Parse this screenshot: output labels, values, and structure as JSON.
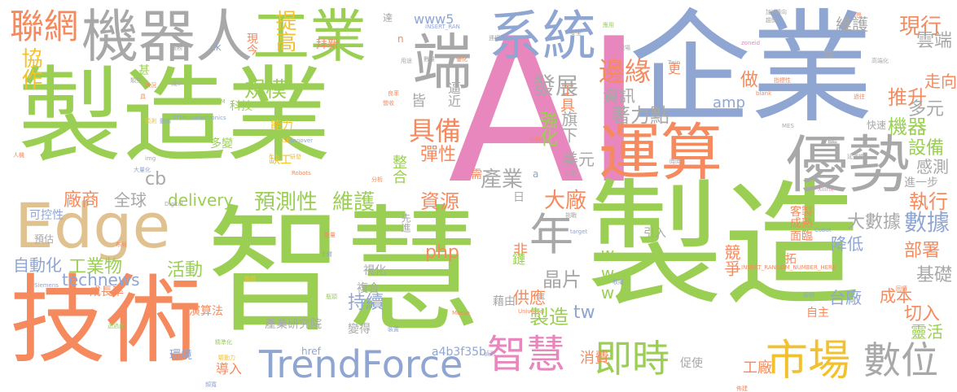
{
  "palette": {
    "green": "#9BCF53",
    "blue": "#8FA5D2",
    "orange": "#F58A5E",
    "pink": "#E886BE",
    "gray": "#A8A8A8",
    "yellow": "#F2C22E",
    "tan": "#E0C190",
    "background": "#FFFFFF"
  },
  "words": [
    {
      "text": "AI",
      "color": "pink"
    },
    {
      "text": "企業",
      "color": "blue"
    },
    {
      "text": "製造業",
      "color": "green"
    },
    {
      "text": "智慧",
      "color": "green"
    },
    {
      "text": "製造",
      "color": "green"
    },
    {
      "text": "技術",
      "color": "orange"
    },
    {
      "text": "機器人",
      "color": "gray"
    },
    {
      "text": "工業",
      "color": "green"
    },
    {
      "text": "系統",
      "color": "blue"
    },
    {
      "text": "端",
      "color": "gray"
    },
    {
      "text": "Edge",
      "color": "tan"
    },
    {
      "text": "運算",
      "color": "orange"
    },
    {
      "text": "優勢",
      "color": "gray"
    },
    {
      "text": "TrendForce",
      "color": "blue"
    },
    {
      "text": "智慧",
      "color": "pink"
    },
    {
      "text": "市場",
      "color": "yellow"
    },
    {
      "text": "即時",
      "color": "green"
    },
    {
      "text": "數位",
      "color": "gray"
    },
    {
      "text": "聯網",
      "color": "orange"
    },
    {
      "text": "年",
      "color": "gray"
    },
    {
      "text": "協作",
      "color": "yellow"
    },
    {
      "text": "提高",
      "color": "yellow"
    },
    {
      "text": "規模",
      "color": "green"
    },
    {
      "text": "邊緣",
      "color": "orange"
    },
    {
      "text": "現行",
      "color": "orange"
    },
    {
      "text": "雲端",
      "color": "gray"
    },
    {
      "text": "走向",
      "color": "orange"
    },
    {
      "text": "推升",
      "color": "orange"
    },
    {
      "text": "多元",
      "color": "gray"
    },
    {
      "text": "機器",
      "color": "green"
    },
    {
      "text": "設備",
      "color": "green"
    },
    {
      "text": "感測",
      "color": "gray"
    },
    {
      "text": "執行",
      "color": "orange"
    },
    {
      "text": "數據",
      "color": "blue"
    },
    {
      "text": "大數據",
      "color": "gray"
    },
    {
      "text": "發展",
      "color": "gray"
    },
    {
      "text": "資訊",
      "color": "gray"
    },
    {
      "text": "著力點",
      "color": "gray"
    },
    {
      "text": "具備",
      "color": "orange"
    },
    {
      "text": "彈性",
      "color": "orange"
    },
    {
      "text": "強化",
      "color": "green"
    },
    {
      "text": "旗下",
      "color": "gray"
    },
    {
      "text": "美元",
      "color": "gray"
    },
    {
      "text": "產業",
      "color": "gray"
    },
    {
      "text": "大廠",
      "color": "orange"
    },
    {
      "text": "預測性",
      "color": "green"
    },
    {
      "text": "維護",
      "color": "green"
    },
    {
      "text": "資源",
      "color": "orange"
    },
    {
      "text": "全球",
      "color": "gray"
    },
    {
      "text": "廠商",
      "color": "orange"
    },
    {
      "text": "delivery",
      "color": "green"
    },
    {
      "text": "活動",
      "color": "green"
    },
    {
      "text": "工業物",
      "color": "green"
    },
    {
      "text": "technews",
      "color": "blue"
    },
    {
      "text": "自動化",
      "color": "blue"
    },
    {
      "text": "晶片",
      "color": "gray"
    },
    {
      "text": "php",
      "color": "orange"
    },
    {
      "text": "www",
      "color": "green"
    },
    {
      "text": "tw",
      "color": "blue"
    },
    {
      "text": "持續",
      "color": "blue"
    },
    {
      "text": "供應",
      "color": "orange"
    },
    {
      "text": "製造",
      "color": "green"
    },
    {
      "text": "產業研究院",
      "color": "gray"
    },
    {
      "text": "a4b3f35b",
      "color": "blue"
    },
    {
      "text": "href",
      "color": "blue"
    },
    {
      "text": "消費",
      "color": "orange"
    },
    {
      "text": "工廠",
      "color": "orange"
    },
    {
      "text": "部署",
      "color": "orange"
    },
    {
      "text": "成本",
      "color": "orange"
    },
    {
      "text": "基礎",
      "color": "gray"
    },
    {
      "text": "切入",
      "color": "orange"
    },
    {
      "text": "靈活",
      "color": "green"
    },
    {
      "text": "台廠",
      "color": "blue"
    },
    {
      "text": "降低",
      "color": "blue"
    },
    {
      "text": "競爭",
      "color": "orange"
    },
    {
      "text": "amp",
      "color": "blue"
    },
    {
      "text": "www5",
      "color": "blue"
    },
    {
      "text": "維護",
      "color": "gray"
    },
    {
      "text": "做",
      "color": "orange"
    },
    {
      "text": "更",
      "color": "orange"
    },
    {
      "text": "工具",
      "color": "orange"
    },
    {
      "text": "cb",
      "color": "gray"
    },
    {
      "text": "科技",
      "color": "green"
    },
    {
      "text": "能力",
      "color": "yellow"
    },
    {
      "text": "缺工",
      "color": "yellow"
    },
    {
      "text": "多變",
      "color": "green"
    },
    {
      "text": "整合",
      "color": "green"
    },
    {
      "text": "導入",
      "color": "orange"
    },
    {
      "text": "環境",
      "color": "blue"
    },
    {
      "text": "演算法",
      "color": "orange"
    },
    {
      "text": "成長率",
      "color": "orange"
    },
    {
      "text": "可控性",
      "color": "blue"
    },
    {
      "text": "預估",
      "color": "gray"
    },
    {
      "text": "現今",
      "color": "orange"
    },
    {
      "text": "拜新",
      "color": "orange"
    },
    {
      "text": "逼近",
      "color": "gray"
    },
    {
      "text": "皆",
      "color": "gray"
    },
    {
      "text": "ck",
      "color": "blue"
    },
    {
      "text": "非",
      "color": "orange"
    },
    {
      "text": "鏈",
      "color": "green"
    },
    {
      "text": "視化",
      "color": "gray"
    },
    {
      "text": "複合",
      "color": "gray"
    },
    {
      "text": "變得",
      "color": "gray"
    },
    {
      "text": "藉由",
      "color": "gray"
    },
    {
      "text": "需",
      "color": "orange"
    },
    {
      "text": "日",
      "color": "gray"
    },
    {
      "text": "先進",
      "color": "gray"
    },
    {
      "text": "引入",
      "color": "gray"
    },
    {
      "text": "客製",
      "color": "orange"
    },
    {
      "text": "成熟",
      "color": "orange"
    },
    {
      "text": "面臨",
      "color": "orange"
    },
    {
      "text": "自主",
      "color": "orange"
    },
    {
      "text": "促使",
      "color": "gray"
    },
    {
      "text": "進一步",
      "color": "gray"
    },
    {
      "text": "拓",
      "color": "orange"
    },
    {
      "text": "賜",
      "color": "gray"
    },
    {
      "text": "快速",
      "color": "gray"
    },
    {
      "text": "億",
      "color": "gray"
    },
    {
      "text": "甚",
      "color": "green"
    },
    {
      "text": "n",
      "color": "orange"
    },
    {
      "text": "a",
      "color": "blue"
    },
    {
      "text": "INSERT_RANDOM_NUMBER_HERE",
      "color": "orange"
    },
    {
      "text": "STMicroelectronics",
      "color": "blue"
    },
    {
      "text": "Hannover",
      "color": "blue"
    },
    {
      "text": "Siemens",
      "color": "blue"
    },
    {
      "text": "Universal",
      "color": "orange"
    },
    {
      "text": "Robots",
      "color": "orange"
    },
    {
      "text": "Xilinx",
      "color": "pink"
    },
    {
      "text": "Cobot",
      "color": "blue"
    },
    {
      "text": "Twin",
      "color": "gray"
    },
    {
      "text": "target",
      "color": "blue"
    },
    {
      "text": "blank",
      "color": "orange"
    },
    {
      "text": "MES",
      "color": "gray"
    },
    {
      "text": "Digital",
      "color": "gray"
    },
    {
      "text": "Messe",
      "color": "orange"
    },
    {
      "text": "PdM",
      "color": "green"
    },
    {
      "text": "GE",
      "color": "yellow"
    },
    {
      "text": "img",
      "color": "gray"
    },
    {
      "text": "zoneid",
      "color": "pink"
    },
    {
      "text": "INSERT_RAN",
      "color": "blue"
    },
    {
      "text": "人機",
      "color": "orange"
    },
    {
      "text": "大量化",
      "color": "blue"
    },
    {
      "text": "精準化",
      "color": "green"
    },
    {
      "text": "驅動力",
      "color": "yellow"
    },
    {
      "text": "透過此",
      "color": "green"
    },
    {
      "text": "高端化",
      "color": "gray"
    },
    {
      "text": "延遲性",
      "color": "gray"
    },
    {
      "text": "指標性",
      "color": "orange"
    },
    {
      "text": "過往",
      "color": "orange"
    },
    {
      "text": "分析",
      "color": "orange"
    },
    {
      "text": "加速",
      "color": "gray"
    },
    {
      "text": "轉向",
      "color": "gray"
    },
    {
      "text": "趨勢",
      "color": "gray"
    },
    {
      "text": "不畏",
      "color": "orange"
    },
    {
      "text": "現場",
      "color": "gray"
    },
    {
      "text": "連接",
      "color": "gray"
    },
    {
      "text": "安全",
      "color": "gray"
    },
    {
      "text": "服務",
      "color": "gray"
    },
    {
      "text": "達",
      "color": "gray"
    },
    {
      "text": "減少",
      "color": "gray"
    },
    {
      "text": "類型",
      "color": "gray"
    },
    {
      "text": "數量",
      "color": "gray"
    },
    {
      "text": "用途",
      "color": "gray"
    },
    {
      "text": "具",
      "color": "orange"
    },
    {
      "text": "狀況",
      "color": "orange"
    },
    {
      "text": "預測",
      "color": "yellow"
    },
    {
      "text": "聯盟",
      "color": "yellow"
    },
    {
      "text": "動態",
      "color": "blue"
    },
    {
      "text": "偵測",
      "color": "blue"
    },
    {
      "text": "頻寬",
      "color": "blue"
    },
    {
      "text": "裝置",
      "color": "blue"
    },
    {
      "text": "時時",
      "color": "gray"
    },
    {
      "text": "災害",
      "color": "gray"
    },
    {
      "text": "布局",
      "color": "orange"
    },
    {
      "text": "手臂",
      "color": "blue"
    },
    {
      "text": "案例",
      "color": "blue"
    },
    {
      "text": "收購",
      "color": "blue"
    },
    {
      "text": "能量",
      "color": "orange"
    },
    {
      "text": "回傳",
      "color": "orange"
    },
    {
      "text": "優化",
      "color": "orange"
    },
    {
      "text": "瓶頸",
      "color": "green"
    },
    {
      "text": "挑戰",
      "color": "gray"
    },
    {
      "text": "研發",
      "color": "yellow"
    },
    {
      "text": "應用",
      "color": "green"
    },
    {
      "text": "營收",
      "color": "orange"
    },
    {
      "text": "良率",
      "color": "orange"
    },
    {
      "text": "出貨",
      "color": "orange"
    },
    {
      "text": "佈建",
      "color": "orange"
    }
  ]
}
